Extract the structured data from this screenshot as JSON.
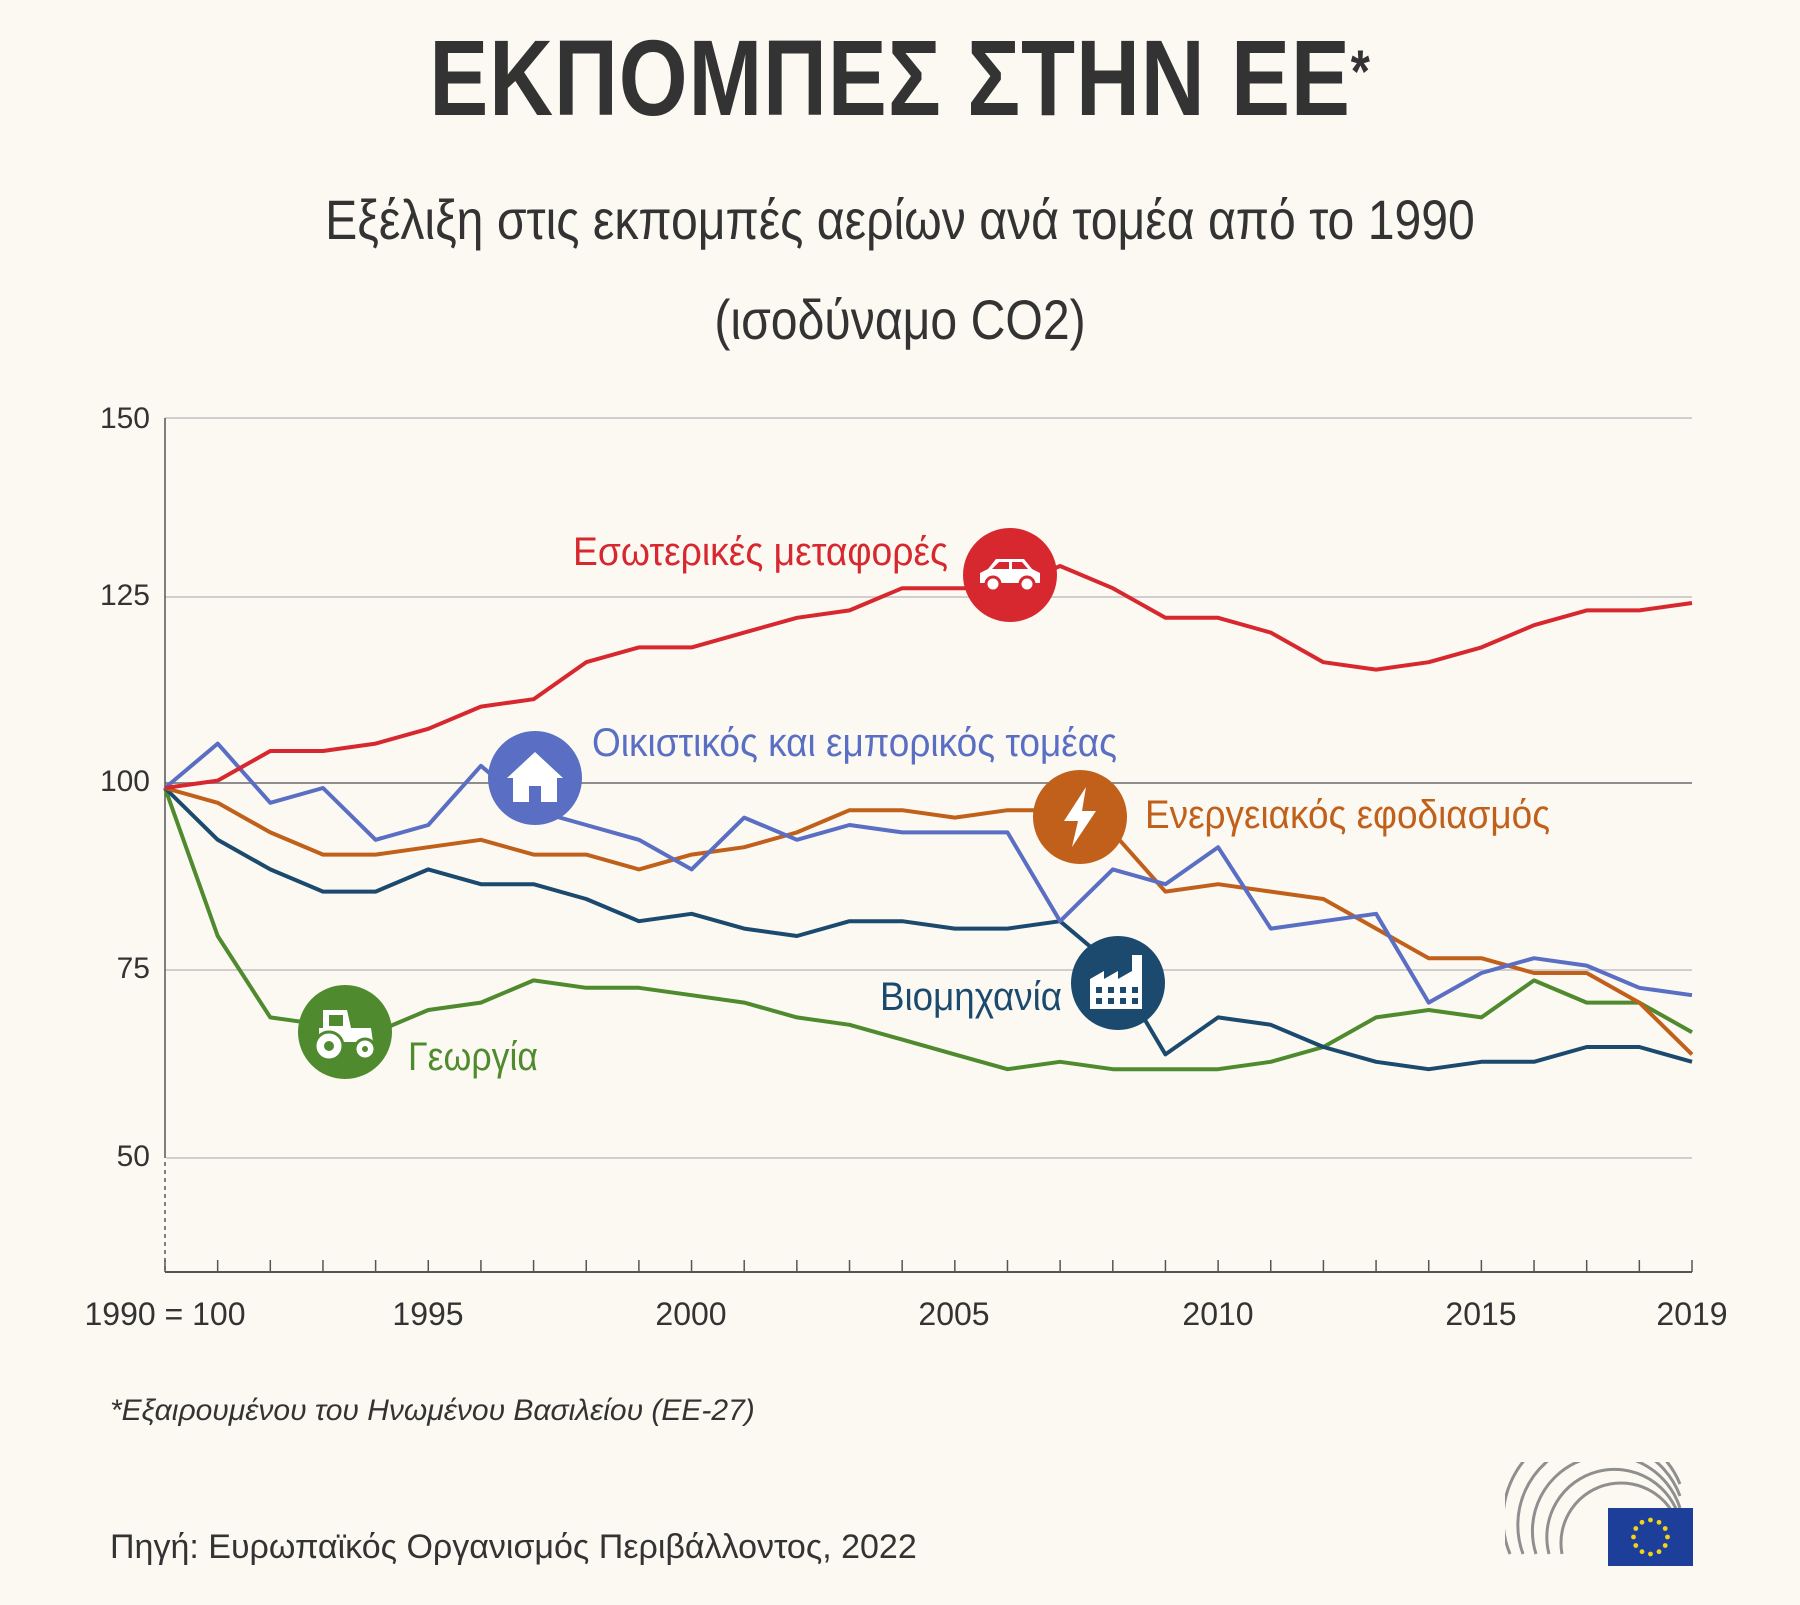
{
  "header": {
    "title": "ΕΚΠΟΜΠΕΣ ΣΤΗΝ ΕΕ",
    "title_mark": "*",
    "subtitle_line1": "Εξέλιξη στις εκπομπές αερίων ανά τομέα από το 1990",
    "subtitle_line2": "(ισοδύναμο CO2)"
  },
  "chart_data": {
    "type": "line",
    "title": "Εξέλιξη στις εκπομπές αερίων ανά τομέα από το 1990 (ισοδύναμο CO2)",
    "x": [
      1990,
      1991,
      1992,
      1993,
      1994,
      1995,
      1996,
      1997,
      1998,
      1999,
      2000,
      2001,
      2002,
      2003,
      2004,
      2005,
      2006,
      2007,
      2008,
      2009,
      2010,
      2011,
      2012,
      2013,
      2014,
      2015,
      2016,
      2017,
      2018,
      2019
    ],
    "ylim": [
      35,
      150
    ],
    "yticks": [
      50,
      75,
      100,
      125,
      150
    ],
    "xticks": [
      {
        "value": 1990,
        "label": "1990 = 100"
      },
      {
        "value": 1995,
        "label": "1995"
      },
      {
        "value": 2000,
        "label": "2000"
      },
      {
        "value": 2005,
        "label": "2005"
      },
      {
        "value": 2010,
        "label": "2010"
      },
      {
        "value": 2015,
        "label": "2015"
      },
      {
        "value": 2019,
        "label": "2019"
      }
    ],
    "grid": true,
    "series": [
      {
        "name": "Εσωτερικές μεταφορές",
        "color": "#d7282f",
        "icon": "car-icon",
        "values": [
          100,
          101,
          105,
          105,
          106,
          108,
          111,
          112,
          117,
          119,
          119,
          121,
          123,
          124,
          127,
          127,
          127,
          130,
          127,
          123,
          123,
          121,
          117,
          116,
          117,
          119,
          122,
          124,
          124,
          125
        ]
      },
      {
        "name": "Οικιστικός και εμπορικός τομέας",
        "color": "#5a6ec4",
        "icon": "house-icon",
        "values": [
          100,
          106,
          98,
          100,
          93,
          95,
          103,
          97,
          95,
          93,
          89,
          96,
          93,
          95,
          94,
          94,
          94,
          82,
          89,
          87,
          92,
          81,
          82,
          83,
          71,
          75,
          77,
          76,
          73,
          72
        ]
      },
      {
        "name": "Ενεργειακός εφοδιασμός",
        "color": "#c0601a",
        "icon": "lightning-icon",
        "values": [
          100,
          98,
          94,
          91,
          91,
          92,
          93,
          91,
          91,
          89,
          91,
          92,
          94,
          97,
          97,
          96,
          97,
          97,
          94,
          86,
          87,
          86,
          85,
          81,
          77,
          77,
          75,
          75,
          71,
          64
        ]
      },
      {
        "name": "Βιομηχανία",
        "color": "#1b4a6e",
        "icon": "factory-icon",
        "values": [
          100,
          93,
          89,
          86,
          86,
          89,
          87,
          87,
          85,
          82,
          83,
          81,
          80,
          82,
          82,
          81,
          81,
          82,
          76,
          64,
          69,
          68,
          65,
          63,
          62,
          63,
          63,
          65,
          65,
          63
        ]
      },
      {
        "name": "Γεωργία",
        "color": "#4f8a2f",
        "icon": "tractor-icon",
        "values": [
          100,
          80,
          69,
          68,
          67,
          70,
          71,
          74,
          73,
          73,
          72,
          71,
          69,
          68,
          66,
          64,
          62,
          63,
          62,
          62,
          62,
          63,
          65,
          69,
          70,
          69,
          74,
          71,
          71,
          67
        ]
      }
    ]
  },
  "footnote": "*Εξαιρουμένου του Ηνωμένου Βασιλείου (ΕΕ-27)",
  "source": "Πηγή: Ευρωπαϊκός Οργανισμός Περιβάλλοντος, 2022",
  "colors": {
    "background": "#fbf9f2",
    "text": "#333333",
    "grid": "#cfcfcf",
    "eu_blue": "#1d3f99",
    "eu_star": "#f3d21a"
  }
}
